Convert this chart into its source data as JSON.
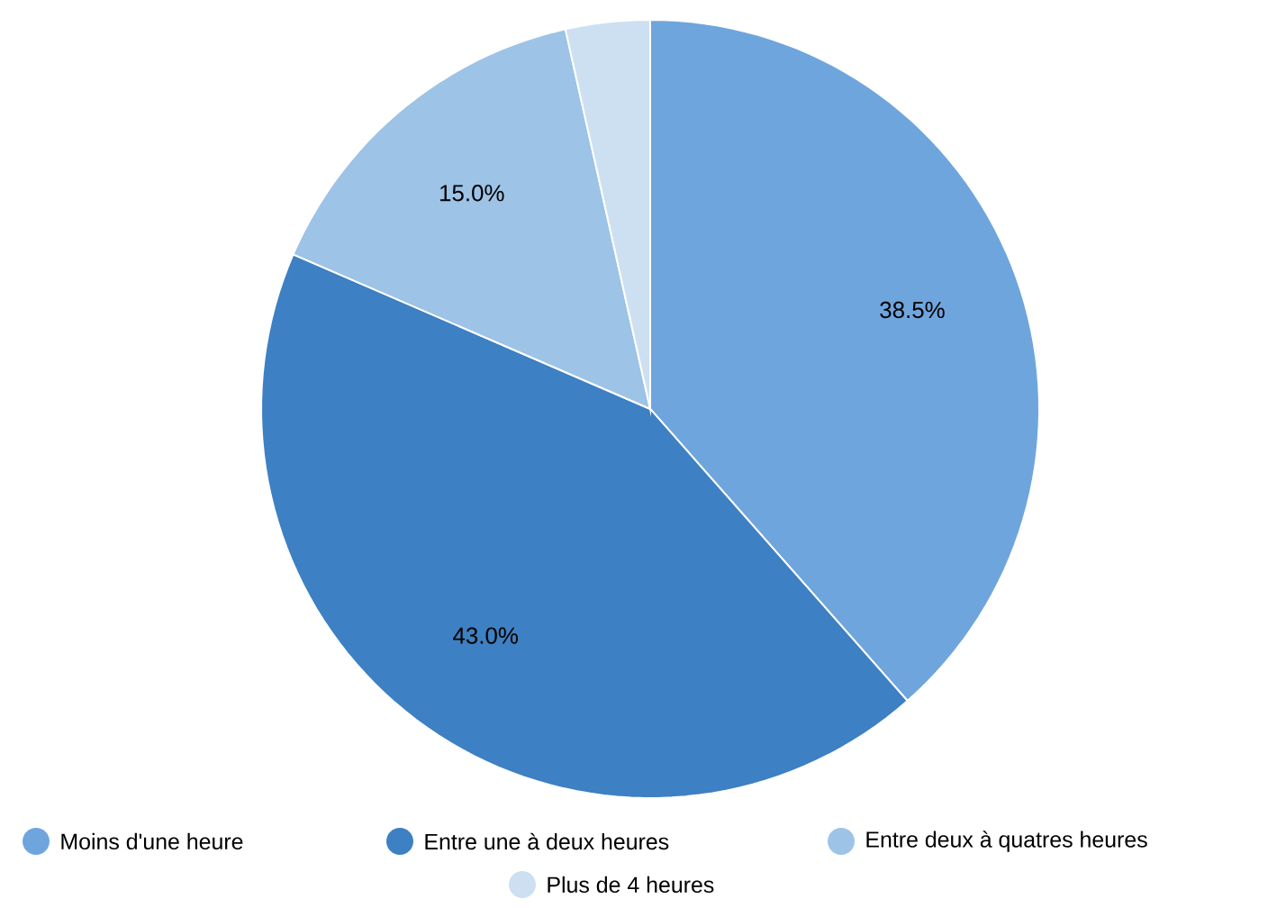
{
  "chart_data": {
    "type": "pie",
    "categories": [
      "Moins d'une heure",
      "Entre une à deux heures",
      "Entre deux à quatres heures",
      "Plus de 4 heures"
    ],
    "values": [
      38.5,
      43.0,
      15.0,
      3.5
    ],
    "value_labels": [
      "38.5%",
      "43.0%",
      "15.0%",
      null
    ],
    "colors": [
      "#6fa5dd",
      "#3d80c3",
      "#9dc3e6",
      "#cde0f1"
    ],
    "legend": "bottom"
  }
}
